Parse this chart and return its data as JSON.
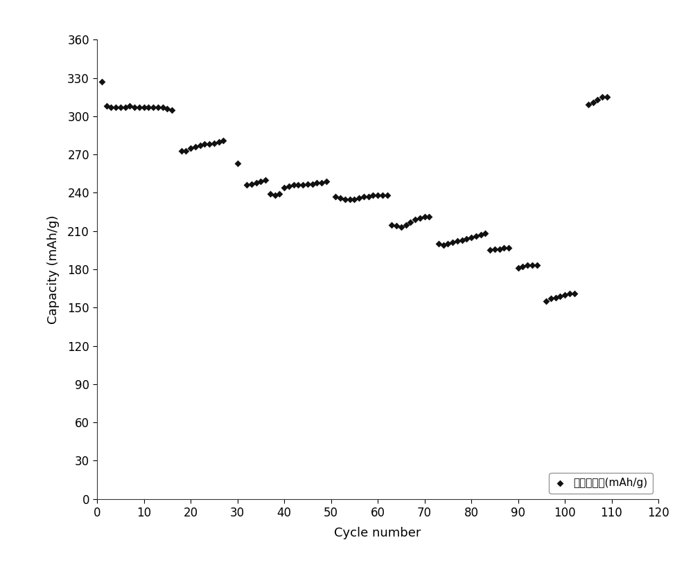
{
  "x": [
    1,
    2,
    3,
    4,
    5,
    6,
    7,
    8,
    9,
    10,
    11,
    12,
    13,
    14,
    15,
    16,
    18,
    19,
    20,
    21,
    22,
    23,
    24,
    25,
    26,
    27,
    30,
    32,
    33,
    34,
    35,
    36,
    37,
    38,
    39,
    40,
    41,
    42,
    43,
    44,
    45,
    46,
    47,
    48,
    49,
    51,
    52,
    53,
    54,
    55,
    56,
    57,
    58,
    59,
    60,
    61,
    62,
    63,
    64,
    65,
    66,
    67,
    68,
    69,
    70,
    71,
    73,
    74,
    75,
    76,
    77,
    78,
    79,
    80,
    81,
    82,
    83,
    84,
    85,
    86,
    87,
    88,
    90,
    91,
    92,
    93,
    94,
    96,
    97,
    98,
    99,
    100,
    101,
    102,
    105,
    106,
    107,
    108,
    109
  ],
  "y": [
    327,
    308,
    307,
    307,
    307,
    307,
    308,
    307,
    307,
    307,
    307,
    307,
    307,
    307,
    306,
    305,
    273,
    273,
    275,
    276,
    277,
    278,
    278,
    279,
    280,
    281,
    263,
    246,
    247,
    248,
    249,
    250,
    239,
    238,
    239,
    244,
    245,
    246,
    246,
    246,
    247,
    247,
    248,
    248,
    249,
    237,
    236,
    235,
    235,
    235,
    236,
    237,
    237,
    238,
    238,
    238,
    238,
    215,
    214,
    213,
    215,
    217,
    219,
    220,
    221,
    221,
    200,
    199,
    200,
    201,
    202,
    203,
    204,
    205,
    206,
    207,
    208,
    195,
    196,
    196,
    197,
    197,
    181,
    182,
    183,
    183,
    183,
    155,
    157,
    158,
    159,
    160,
    161,
    161,
    309,
    311,
    313,
    315,
    315
  ],
  "marker": "D",
  "marker_size": 5,
  "color": "#111111",
  "xlabel": "Cycle number",
  "ylabel": "Capacity (mAh/g)",
  "xlim": [
    0,
    120
  ],
  "ylim": [
    0,
    360
  ],
  "xticks": [
    0,
    10,
    20,
    30,
    40,
    50,
    60,
    70,
    80,
    90,
    100,
    110,
    120
  ],
  "yticks": [
    0,
    30,
    60,
    90,
    120,
    150,
    180,
    210,
    240,
    270,
    300,
    330,
    360
  ],
  "legend_label": "充电比容量(mAh/g)",
  "legend_loc": "lower right",
  "xlabel_fontsize": 13,
  "ylabel_fontsize": 13,
  "tick_fontsize": 12,
  "legend_fontsize": 11,
  "background_color": "#ffffff"
}
